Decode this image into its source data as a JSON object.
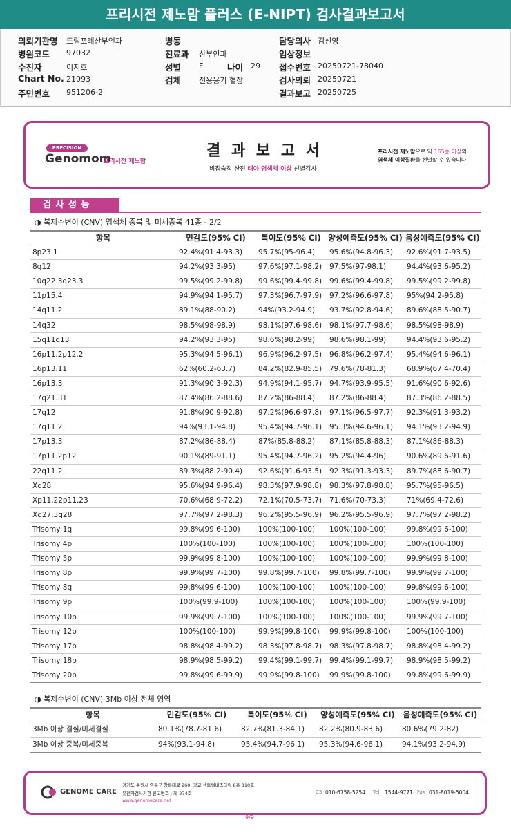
{
  "header": {
    "title": "프리시전 제노맘 플러스 (E-NIPT) 검사결과보고서"
  },
  "info": {
    "columns": [
      [
        {
          "label": "의뢰기관명",
          "value": "드림포레산부인과"
        },
        {
          "label": "병원코드",
          "value": "97032"
        },
        {
          "label": "수진자",
          "value": "이지호"
        },
        {
          "label": "Chart No.",
          "value": "21093"
        },
        {
          "label": "주민번호",
          "value": "951206-2"
        }
      ],
      [
        {
          "label": "병동"
        },
        {
          "label": "진료과",
          "value": "산부인과"
        },
        {
          "label": "성별",
          "value": "F",
          "label2": "나이",
          "value2": "29"
        },
        {
          "label": "검체",
          "value": "전용용기 혈장"
        }
      ],
      [
        {
          "label": "담당의사",
          "value": "김선영"
        },
        {
          "label": "임상정보"
        },
        {
          "label": "접수번호",
          "value": "20250721-78040"
        },
        {
          "label": "검사의뢰",
          "value": "20250721"
        },
        {
          "label": "결과보고",
          "value": "20250725"
        }
      ]
    ]
  },
  "banner": {
    "badge": "PRECISION",
    "logo": "Genomom",
    "brand": "프리시전 제노맘",
    "title": "결 과 보 고 서",
    "subtitle": [
      "비침습적 산전 ",
      "태아 염색체 이상",
      " 선별검사"
    ],
    "note_line1": [
      "프리시전 제노맘",
      "으로 약 ",
      "165종 이상",
      "의"
    ],
    "note_line2": [
      "염색체 이상질환",
      "을 선별할 수 있습니다"
    ]
  },
  "section_tab": "검 사 성 능",
  "table1": {
    "heading": "◑ 복제수변이 (CNV) 염색체 중복 및 미세중복 41종 - 2/2",
    "columns": [
      "항목",
      "민감도(95% CI)",
      "특이도(95% CI)",
      "양성예측도(95% CI)",
      "음성예측도(95% CI)"
    ],
    "rows": [
      [
        "8p23.1",
        "92.4%(91.4-93.3)",
        "95.7%(95-96.4)",
        "95.6%(94.8-96.3)",
        "92.6%(91.7-93.5)"
      ],
      [
        "8q12",
        "94.2%(93.3-95)",
        "97.6%(97.1-98.2)",
        "97.5%(97-98.1)",
        "94.4%(93.6-95.2)"
      ],
      [
        "10q22.3q23.3",
        "99.5%(99.2-99.8)",
        "99.6%(99.4-99.8)",
        "99.6%(99.4-99.8)",
        "99.5%(99.2-99.8)"
      ],
      [
        "11p15.4",
        "94.9%(94.1-95.7)",
        "97.3%(96.7-97.9)",
        "97.2%(96.6-97.8)",
        "95%(94.2-95.8)"
      ],
      [
        "14q11.2",
        "89.1%(88-90.2)",
        "94%(93.2-94.9)",
        "93.7%(92.8-94.6)",
        "89.6%(88.5-90.7)"
      ],
      [
        "14q32",
        "98.5%(98-98.9)",
        "98.1%(97.6-98.6)",
        "98.1%(97.7-98.6)",
        "98.5%(98-98.9)"
      ],
      [
        "15q11q13",
        "94.2%(93.3-95)",
        "98.6%(98.2-99)",
        "98.6%(98.1-99)",
        "94.4%(93.6-95.2)"
      ],
      [
        "16p11.2p12.2",
        "95.3%(94.5-96.1)",
        "96.9%(96.2-97.5)",
        "96.8%(96.2-97.4)",
        "95.4%(94.6-96.1)"
      ],
      [
        "16p13.11",
        "62%(60.2-63.7)",
        "84.2%(82.9-85.5)",
        "79.6%(78-81.3)",
        "68.9%(67.4-70.4)"
      ],
      [
        "16p13.3",
        "91.3%(90.3-92.3)",
        "94.9%(94.1-95.7)",
        "94.7%(93.9-95.5)",
        "91.6%(90.6-92.6)"
      ],
      [
        "17q21.31",
        "87.4%(86.2-88.6)",
        "87.2%(86-88.4)",
        "87.2%(86-88.4)",
        "87.3%(86.2-88.5)"
      ],
      [
        "17q12",
        "91.8%(90.9-92.8)",
        "97.2%(96.6-97.8)",
        "97.1%(96.5-97.7)",
        "92.3%(91.3-93.2)"
      ],
      [
        "17q11.2",
        "94%(93.1-94.8)",
        "95.4%(94.7-96.1)",
        "95.3%(94.6-96.1)",
        "94.1%(93.2-94.9)"
      ],
      [
        "17p13.3",
        "87.2%(86-88.4)",
        "87%(85.8-88.2)",
        "87.1%(85.8-88.3)",
        "87.1%(86-88.3)"
      ],
      [
        "17p11.2p12",
        "90.1%(89-91.1)",
        "95.4%(94.7-96.2)",
        "95.2%(94.4-96)",
        "90.6%(89.6-91.6)"
      ],
      [
        "22q11.2",
        "89.3%(88.2-90.4)",
        "92.6%(91.6-93.5)",
        "92.3%(91.3-93.3)",
        "89.7%(88.6-90.7)"
      ],
      [
        "Xq28",
        "95.6%(94.9-96.4)",
        "98.3%(97.9-98.8)",
        "98.3%(97.8-98.8)",
        "95.7%(95-96.5)"
      ],
      [
        "Xp11.22p11.23",
        "70.6%(68.9-72.2)",
        "72.1%(70.5-73.7)",
        "71.6%(70-73.3)",
        "71%(69.4-72.6)"
      ],
      [
        "Xq27.3q28",
        "97.7%(97.2-98.3)",
        "96.2%(95.5-96.9)",
        "96.2%(95.5-96.9)",
        "97.7%(97.2-98.2)"
      ],
      [
        "Trisomy 1q",
        "99.8%(99.6-100)",
        "100%(100-100)",
        "100%(100-100)",
        "99.8%(99.6-100)"
      ],
      [
        "Trisomy 4p",
        "100%(100-100)",
        "100%(100-100)",
        "100%(100-100)",
        "100%(100-100)"
      ],
      [
        "Trisomy 5p",
        "99.9%(99.8-100)",
        "100%(100-100)",
        "100%(100-100)",
        "99.9%(99.8-100)"
      ],
      [
        "Trisomy 8p",
        "99.9%(99.7-100)",
        "99.8%(99.7-100)",
        "99.8%(99.7-100)",
        "99.9%(99.7-100)"
      ],
      [
        "Trisomy 8q",
        "99.8%(99.6-100)",
        "100%(100-100)",
        "100%(100-100)",
        "99.8%(99.6-100)"
      ],
      [
        "Trisomy 9p",
        "100%(99.9-100)",
        "100%(100-100)",
        "100%(100-100)",
        "100%(99.9-100)"
      ],
      [
        "Trisomy 10p",
        "99.9%(99.7-100)",
        "100%(100-100)",
        "100%(100-100)",
        "99.9%(99.7-100)"
      ],
      [
        "Trisomy 12p",
        "100%(100-100)",
        "99.9%(99.8-100)",
        "99.9%(99.8-100)",
        "100%(100-100)"
      ],
      [
        "Trisomy 17p",
        "98.8%(98.4-99.2)",
        "98.3%(97.8-98.7)",
        "98.3%(97.8-98.7)",
        "98.8%(98.4-99.2)"
      ],
      [
        "Trisomy 18p",
        "98.9%(98.5-99.2)",
        "99.4%(99.1-99.7)",
        "99.4%(99.1-99.7)",
        "98.9%(98.5-99.2)"
      ],
      [
        "Trisomy 20p",
        "99.8%(99.6-99.9)",
        "99.9%(99.8-100)",
        "99.9%(99.8-100)",
        "99.8%(99.6-99.9)"
      ]
    ]
  },
  "table2": {
    "heading": "◑ 복제수변이 (CNV) 3Mb 이상 전체 영역",
    "columns": [
      "항목",
      "민감도(95% CI)",
      "특이도(95% CI)",
      "양성예측도(95% CI)",
      "음성예측도(95% CI)"
    ],
    "rows": [
      [
        "3Mb 이상 결실/미세결실",
        "80.1%(78.7-81.6)",
        "82.7%(81.3-84.1)",
        "82.2%(80.9-83.6)",
        "80.6%(79.2-82)"
      ],
      [
        "3Mb 이상 중복/미세중복",
        "94%(93.1-94.8)",
        "95.4%(94.7-96.1)",
        "95.3%(94.6-96.1)",
        "94.1%(93.2-94.9)"
      ]
    ]
  },
  "footer": {
    "logo": "GENOME CARE",
    "address": "경기도 수원시 영통구 창룡대로 260, 광교 센트럴비즈타워 8층 810호",
    "registration": "유전자검사기관 신고번호 : 제 274호",
    "website": "www.genomecare.net",
    "contacts": [
      {
        "label": "CS",
        "value": "010-6758-5254"
      },
      {
        "label": "Tel",
        "value": "1544-9771"
      },
      {
        "label": "Fax",
        "value": "031-8019-5004"
      }
    ]
  },
  "page_number": "9/9"
}
